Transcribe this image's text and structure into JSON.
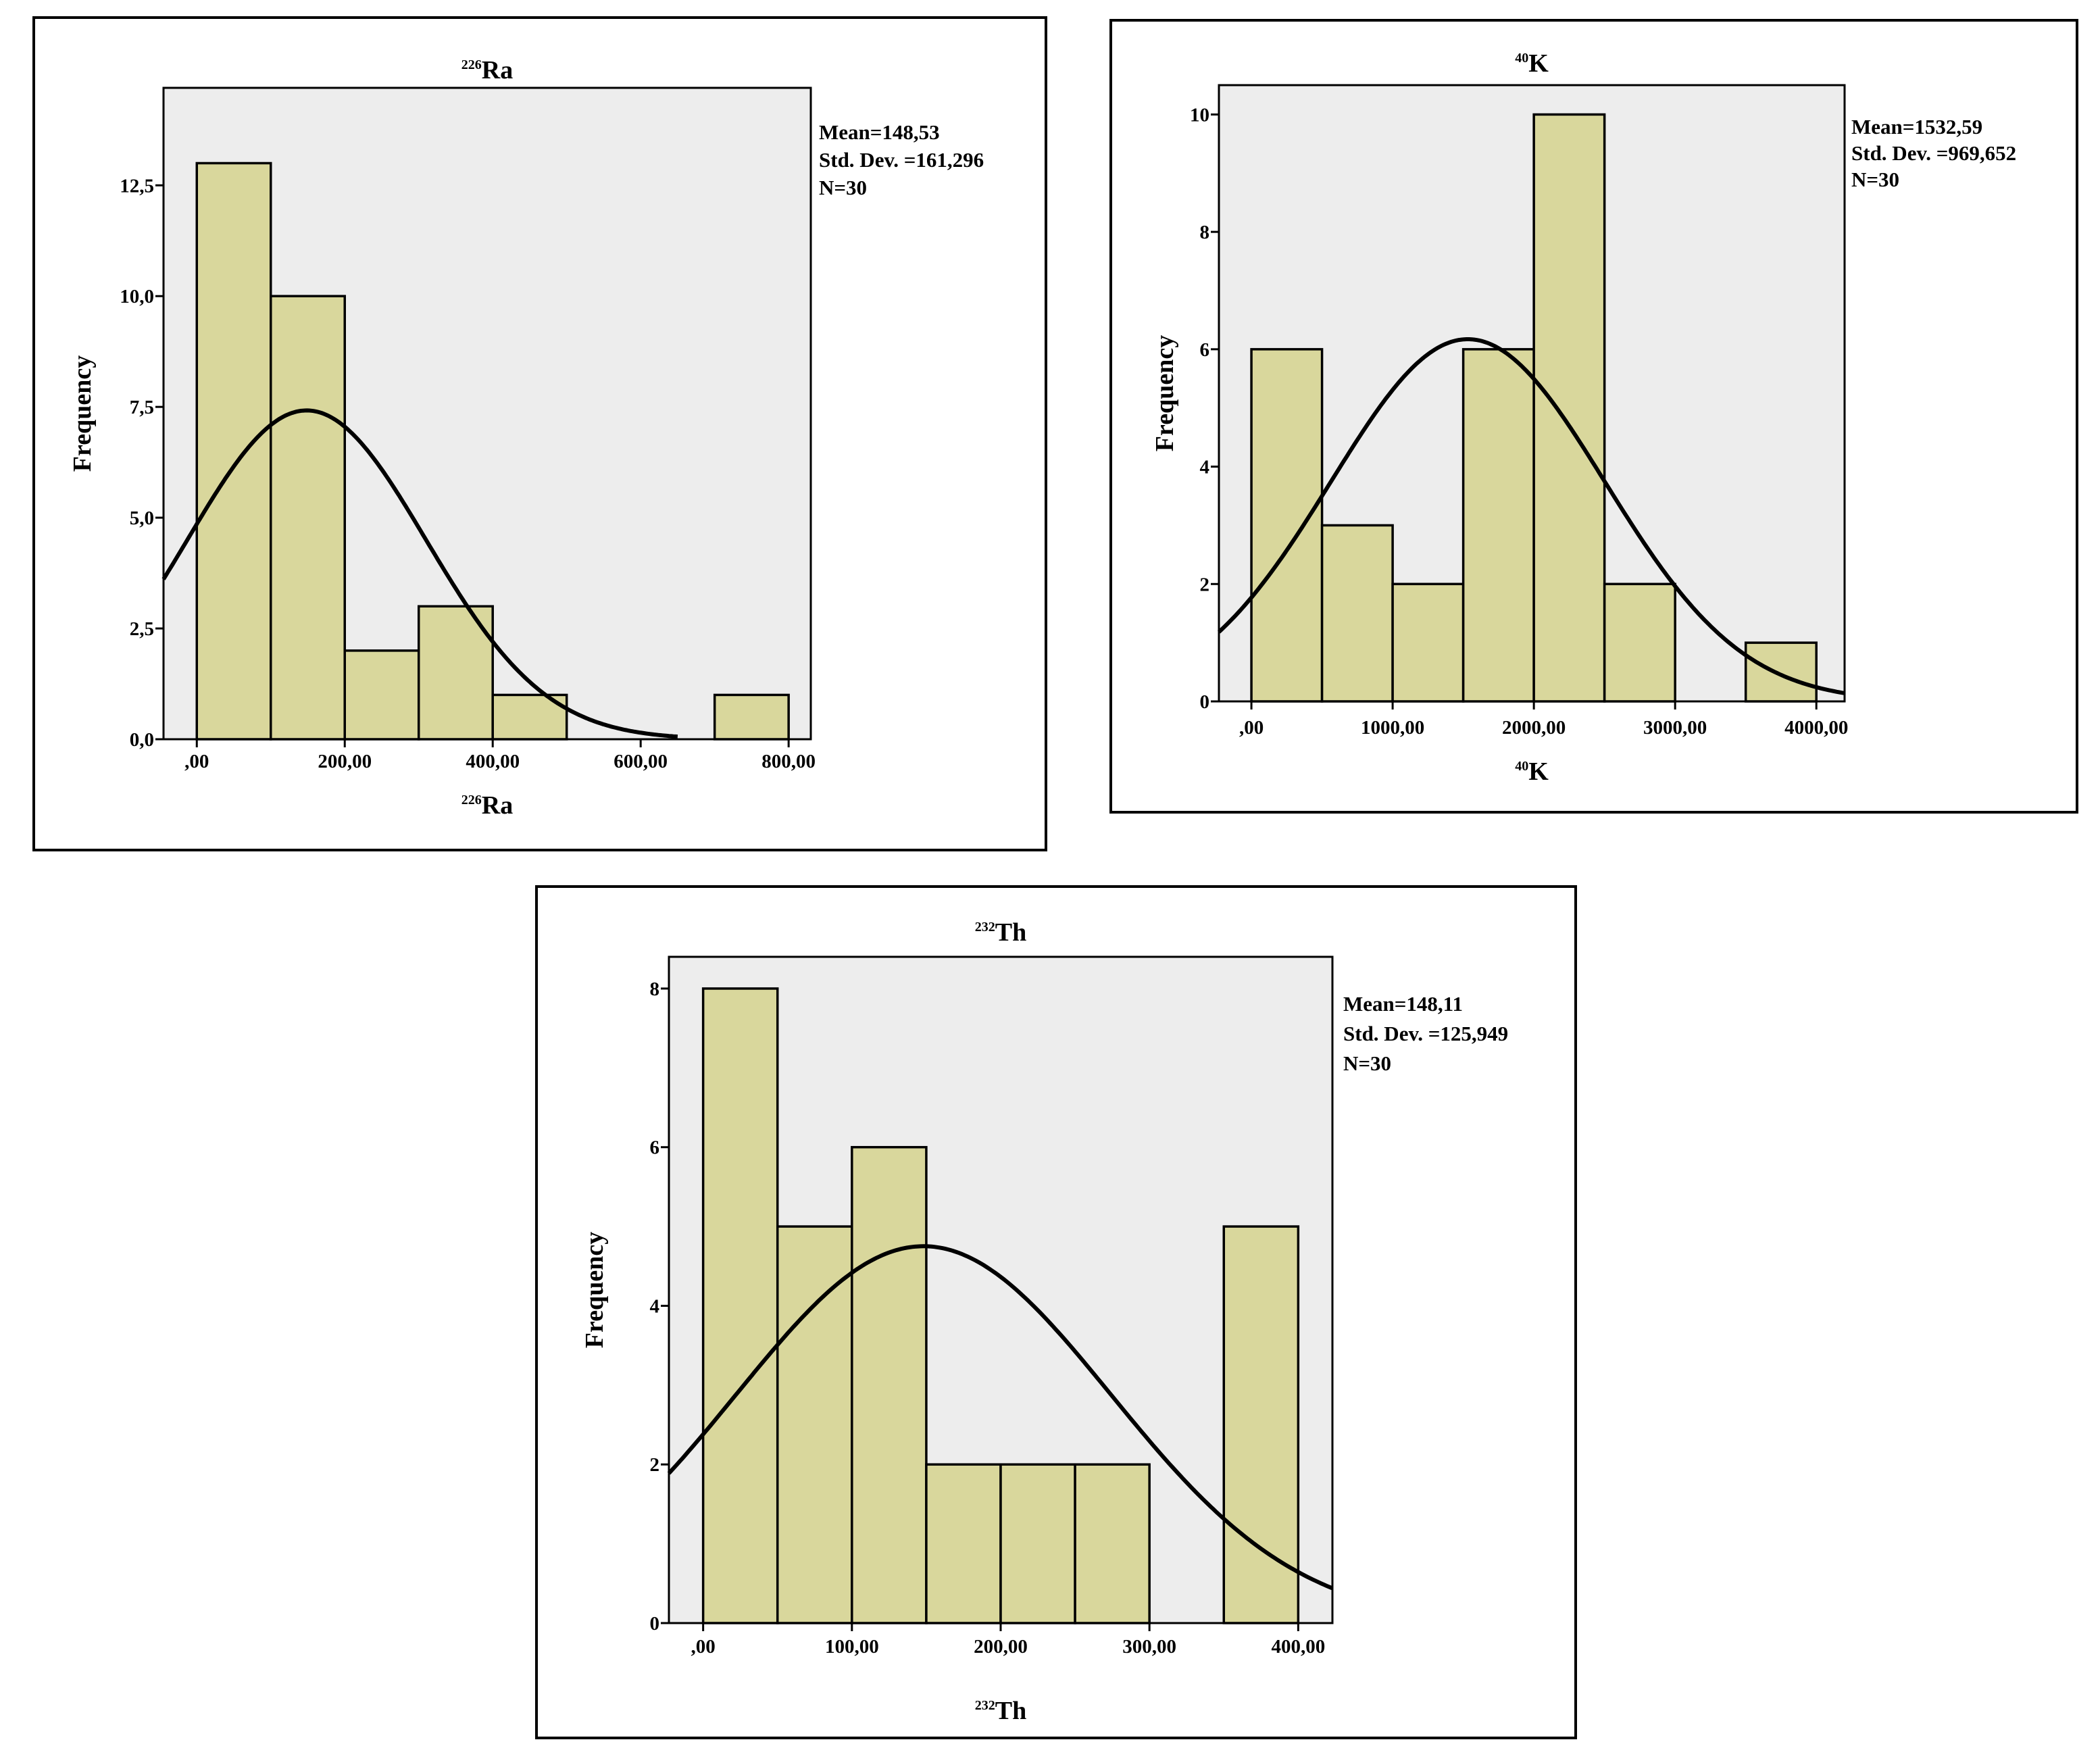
{
  "chart_data": [
    {
      "id": "ra",
      "type": "bar",
      "title": {
        "sup": "226",
        "main": "Ra"
      },
      "xlabel": {
        "sup": "226",
        "main": "Ra"
      },
      "ylabel": "Frequency",
      "bins": [
        {
          "start": 0,
          "end": 100,
          "count": 13
        },
        {
          "start": 100,
          "end": 200,
          "count": 10
        },
        {
          "start": 200,
          "end": 300,
          "count": 2
        },
        {
          "start": 300,
          "end": 400,
          "count": 3
        },
        {
          "start": 400,
          "end": 500,
          "count": 1
        },
        {
          "start": 700,
          "end": 800,
          "count": 1
        }
      ],
      "xlim": [
        -45,
        830
      ],
      "ylim": [
        0,
        14.7
      ],
      "xticks": [
        {
          "v": 0,
          "label": ",00"
        },
        {
          "v": 200,
          "label": "200,00"
        },
        {
          "v": 400,
          "label": "400,00"
        },
        {
          "v": 600,
          "label": "600,00"
        },
        {
          "v": 800,
          "label": "800,00"
        }
      ],
      "yticks": [
        {
          "v": 0,
          "label": "0,0"
        },
        {
          "v": 2.5,
          "label": "2,5"
        },
        {
          "v": 5,
          "label": "5,0"
        },
        {
          "v": 7.5,
          "label": "7,5"
        },
        {
          "v": 10,
          "label": "10,0"
        },
        {
          "v": 12.5,
          "label": "12,5"
        }
      ],
      "normal_curve": {
        "mean": 148.53,
        "sd": 161.296,
        "n": 30,
        "bin_width": 100,
        "x_end": 650
      },
      "stats": [
        "Mean=148,53",
        "Std. Dev. =161,296",
        "N=30"
      ]
    },
    {
      "id": "k",
      "type": "bar",
      "title": {
        "sup": "40",
        "main": "K"
      },
      "xlabel": {
        "sup": "40",
        "main": "K"
      },
      "ylabel": "Frequency",
      "bins": [
        {
          "start": 0,
          "end": 500,
          "count": 6
        },
        {
          "start": 500,
          "end": 1000,
          "count": 3
        },
        {
          "start": 1000,
          "end": 1500,
          "count": 2
        },
        {
          "start": 1500,
          "end": 2000,
          "count": 6
        },
        {
          "start": 2000,
          "end": 2500,
          "count": 10
        },
        {
          "start": 2500,
          "end": 3000,
          "count": 2
        },
        {
          "start": 3500,
          "end": 4000,
          "count": 1
        }
      ],
      "xlim": [
        -230,
        4200
      ],
      "ylim": [
        0,
        10.5
      ],
      "xticks": [
        {
          "v": 0,
          "label": ",00"
        },
        {
          "v": 1000,
          "label": "1000,00"
        },
        {
          "v": 2000,
          "label": "2000,00"
        },
        {
          "v": 3000,
          "label": "3000,00"
        },
        {
          "v": 4000,
          "label": "4000,00"
        }
      ],
      "yticks": [
        {
          "v": 0,
          "label": "0"
        },
        {
          "v": 2,
          "label": "2"
        },
        {
          "v": 4,
          "label": "4"
        },
        {
          "v": 6,
          "label": "6"
        },
        {
          "v": 8,
          "label": "8"
        },
        {
          "v": 10,
          "label": "10"
        }
      ],
      "normal_curve": {
        "mean": 1532.59,
        "sd": 969.652,
        "n": 30,
        "bin_width": 500
      },
      "stats": [
        "Mean=1532,59",
        "Std. Dev. =969,652",
        "N=30"
      ]
    },
    {
      "id": "th",
      "type": "bar",
      "title": {
        "sup": "232",
        "main": "Th"
      },
      "xlabel": {
        "sup": "232",
        "main": "Th"
      },
      "ylabel": "Frequency",
      "bins": [
        {
          "start": 0,
          "end": 50,
          "count": 8
        },
        {
          "start": 50,
          "end": 100,
          "count": 5
        },
        {
          "start": 100,
          "end": 150,
          "count": 6
        },
        {
          "start": 150,
          "end": 200,
          "count": 2
        },
        {
          "start": 200,
          "end": 250,
          "count": 2
        },
        {
          "start": 250,
          "end": 300,
          "count": 2
        },
        {
          "start": 350,
          "end": 400,
          "count": 5
        }
      ],
      "xlim": [
        -23,
        423
      ],
      "ylim": [
        0,
        8.4
      ],
      "xticks": [
        {
          "v": 0,
          "label": ",00"
        },
        {
          "v": 100,
          "label": "100,00"
        },
        {
          "v": 200,
          "label": "200,00"
        },
        {
          "v": 300,
          "label": "300,00"
        },
        {
          "v": 400,
          "label": "400,00"
        }
      ],
      "yticks": [
        {
          "v": 0,
          "label": "0"
        },
        {
          "v": 2,
          "label": "2"
        },
        {
          "v": 4,
          "label": "4"
        },
        {
          "v": 6,
          "label": "6"
        },
        {
          "v": 8,
          "label": "8"
        }
      ],
      "normal_curve": {
        "mean": 148.11,
        "sd": 125.949,
        "n": 30,
        "bin_width": 50
      },
      "stats": [
        "Mean=148,11",
        "Std. Dev. =125,949",
        "N=30"
      ]
    }
  ]
}
